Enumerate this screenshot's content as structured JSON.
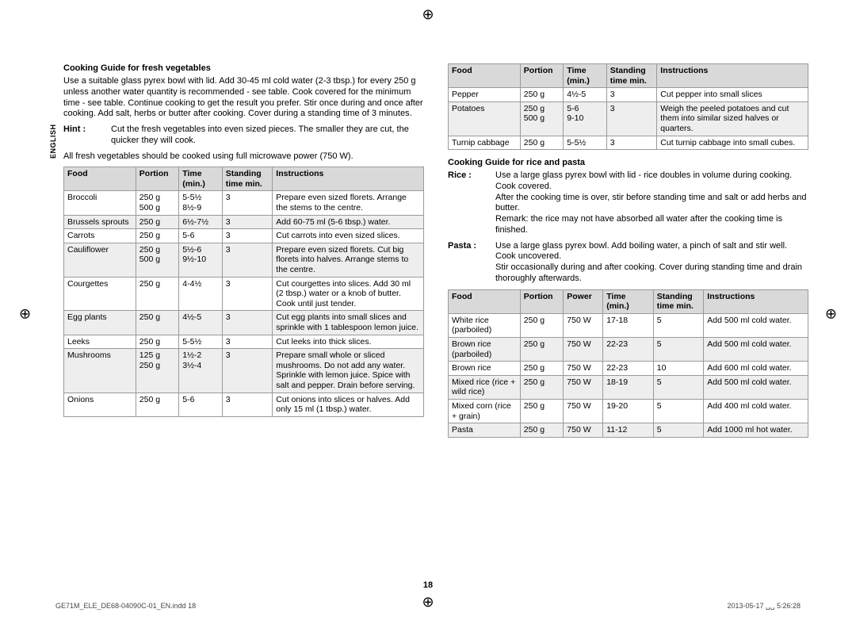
{
  "sidelabel": "ENGLISH",
  "left": {
    "heading": "Cooking Guide for fresh vegetables",
    "intro": "Use a suitable glass pyrex bowl with lid. Add 30-45 ml cold water (2-3 tbsp.) for every 250 g unless another water quantity is recommended - see table. Cook covered for the minimum time - see table. Continue cooking to get the result you prefer. Stir once during and once after cooking. Add salt, herbs or butter after cooking. Cover during a standing time of 3 minutes.",
    "hint_label": "Hint :",
    "hint_text": "Cut the fresh vegetables into even sized pieces. The smaller they are cut, the quicker they will cook.",
    "note": "All fresh vegetables should be cooked using full microwave power (750 W).",
    "headers": {
      "c1": "Food",
      "c2": "Portion",
      "c3": "Time (min.)",
      "c4": "Standing time min.",
      "c5": "Instructions"
    },
    "rows": [
      {
        "food": "Broccoli",
        "portion": "250 g\n500 g",
        "time": "5-5½\n8½-9",
        "stand": "3",
        "inst": "Prepare even sized florets. Arrange the stems to the centre."
      },
      {
        "food": "Brussels sprouts",
        "portion": "250 g",
        "time": "6½-7½",
        "stand": "3",
        "inst": "Add 60-75 ml (5-6 tbsp.) water."
      },
      {
        "food": "Carrots",
        "portion": "250 g",
        "time": "5-6",
        "stand": "3",
        "inst": "Cut carrots into even sized slices."
      },
      {
        "food": "Cauliflower",
        "portion": "250 g\n500 g",
        "time": "5½-6\n9½-10",
        "stand": "3",
        "inst": "Prepare even sized florets. Cut big florets into halves. Arrange stems to the centre."
      },
      {
        "food": "Courgettes",
        "portion": "250 g",
        "time": "4-4½",
        "stand": "3",
        "inst": "Cut courgettes into slices. Add 30 ml (2 tbsp.) water or a knob of butter. Cook until just tender."
      },
      {
        "food": "Egg plants",
        "portion": "250 g",
        "time": "4½-5",
        "stand": "3",
        "inst": "Cut egg plants into small slices and sprinkle with 1 tablespoon lemon juice."
      },
      {
        "food": "Leeks",
        "portion": "250 g",
        "time": "5-5½",
        "stand": "3",
        "inst": "Cut leeks into thick slices."
      },
      {
        "food": "Mushrooms",
        "portion": "125 g\n250 g",
        "time": "1½-2\n3½-4",
        "stand": "3",
        "inst": "Prepare small whole or sliced mushrooms. Do not add any water. Sprinkle with lemon juice. Spice with salt and pepper. Drain before serving."
      },
      {
        "food": "Onions",
        "portion": "250 g",
        "time": "5-6",
        "stand": "3",
        "inst": "Cut onions into slices or halves. Add only 15 ml (1 tbsp.) water."
      }
    ]
  },
  "right_top": {
    "headers": {
      "c1": "Food",
      "c2": "Portion",
      "c3": "Time (min.)",
      "c4": "Standing time min.",
      "c5": "Instructions"
    },
    "rows": [
      {
        "food": "Pepper",
        "portion": "250 g",
        "time": "4½-5",
        "stand": "3",
        "inst": "Cut pepper into small slices"
      },
      {
        "food": "Potatoes",
        "portion": "250 g\n500 g",
        "time": "5-6\n9-10",
        "stand": "3",
        "inst": "Weigh the peeled potatoes and cut them into similar sized halves or quarters."
      },
      {
        "food": "Turnip cabbage",
        "portion": "250 g",
        "time": "5-5½",
        "stand": "3",
        "inst": "Cut turnip cabbage into small cubes."
      }
    ]
  },
  "right_mid": {
    "heading": "Cooking Guide for rice and pasta",
    "rice_label": "Rice :",
    "rice_text": "Use a large glass pyrex bowl with lid - rice doubles in volume during cooking. Cook covered.\nAfter the cooking time is over, stir before standing time and salt or add herbs and butter.\nRemark: the rice may not have absorbed all water after the cooking time is finished.",
    "pasta_label": "Pasta :",
    "pasta_text": "Use a large glass pyrex bowl. Add boiling water, a pinch of salt and stir well. Cook uncovered.\nStir occasionally during and after cooking. Cover during standing time and drain thoroughly afterwards."
  },
  "right_bot": {
    "headers": {
      "c1": "Food",
      "c2": "Portion",
      "c3": "Power",
      "c4": "Time (min.)",
      "c5": "Standing time min.",
      "c6": "Instructions"
    },
    "rows": [
      {
        "food": "White rice (parboiled)",
        "portion": "250 g",
        "power": "750 W",
        "time": "17-18",
        "stand": "5",
        "inst": "Add 500 ml cold water."
      },
      {
        "food": "Brown rice (parboiled)",
        "portion": "250 g",
        "power": "750 W",
        "time": "22-23",
        "stand": "5",
        "inst": "Add 500 ml cold water."
      },
      {
        "food": "Brown rice",
        "portion": "250 g",
        "power": "750 W",
        "time": "22-23",
        "stand": "10",
        "inst": "Add 600 ml cold water."
      },
      {
        "food": "Mixed rice (rice + wild rice)",
        "portion": "250 g",
        "power": "750 W",
        "time": "18-19",
        "stand": "5",
        "inst": "Add 500 ml cold water."
      },
      {
        "food": "Mixed corn (rice + grain)",
        "portion": "250 g",
        "power": "750 W",
        "time": "19-20",
        "stand": "5",
        "inst": "Add 400 ml cold water."
      },
      {
        "food": "Pasta",
        "portion": "250 g",
        "power": "750 W",
        "time": "11-12",
        "stand": "5",
        "inst": "Add 1000 ml hot water."
      }
    ]
  },
  "pagenum": "18",
  "footer_left": "GE71M_ELE_DE68-04090C-01_EN.indd   18",
  "footer_right": "2013-05-17   ␣␣ 5:26:28",
  "colw": {
    "veg": {
      "c1": "20%",
      "c2": "12%",
      "c3": "12%",
      "c4": "14%",
      "c5": "42%"
    },
    "rice": {
      "c1": "20%",
      "c2": "12%",
      "c3": "11%",
      "c4": "14%",
      "c5": "14%",
      "c6": "29%"
    }
  }
}
